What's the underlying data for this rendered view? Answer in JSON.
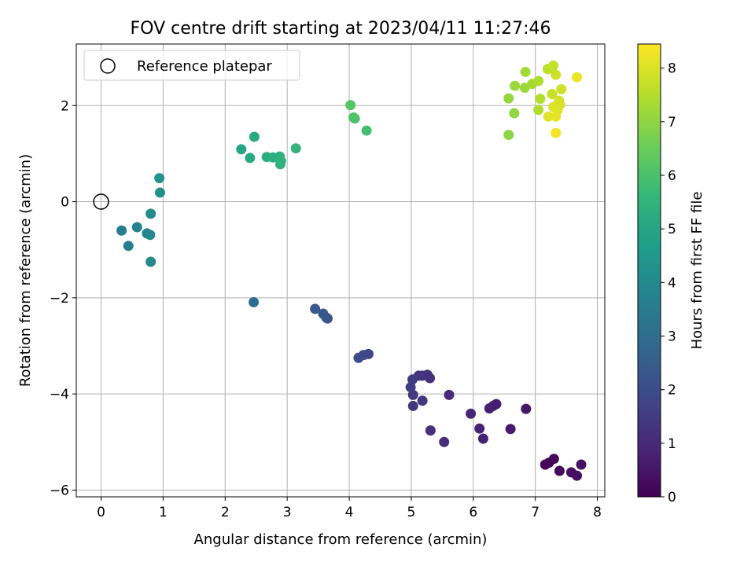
{
  "chart_data": {
    "type": "scatter",
    "title": "FOV centre drift starting at 2023/04/11 11:27:46",
    "xlabel": "Angular distance from reference (arcmin)",
    "ylabel": "Rotation from reference (arcmin)",
    "xlim": [
      -0.4,
      8.12
    ],
    "ylim": [
      -6.14,
      3.28
    ],
    "x_ticks": [
      0,
      1,
      2,
      3,
      4,
      5,
      6,
      7,
      8
    ],
    "x_tick_labels": [
      "0",
      "1",
      "2",
      "3",
      "4",
      "5",
      "6",
      "7",
      "8"
    ],
    "y_ticks": [
      -6,
      -4,
      -2,
      0,
      2
    ],
    "y_tick_labels": [
      "−6",
      "−4",
      "−2",
      "0",
      "2"
    ],
    "grid": true,
    "legend": {
      "location": "top-left",
      "entries": [
        {
          "label": "Reference platepar",
          "marker": "open-circle",
          "x": 0,
          "y": 0
        }
      ]
    },
    "colorbar": {
      "label": "Hours from first FF file",
      "colormap": "viridis",
      "range": [
        0,
        8.45
      ],
      "ticks": [
        0,
        1,
        2,
        3,
        4,
        5,
        6,
        7,
        8
      ],
      "tick_labels": [
        "0",
        "1",
        "2",
        "3",
        "4",
        "5",
        "6",
        "7",
        "8"
      ]
    },
    "colormap_stops": [
      "#440154",
      "#482878",
      "#3e4989",
      "#31688e",
      "#26828e",
      "#1f9e89",
      "#35b779",
      "#6ece58",
      "#b5de2b",
      "#fde725"
    ],
    "reference_point": {
      "x": 0,
      "y": 0
    },
    "points": [
      {
        "x": 7.16,
        "y": -5.47,
        "h": 0.1
      },
      {
        "x": 7.22,
        "y": -5.43,
        "h": 0.15
      },
      {
        "x": 7.3,
        "y": -5.35,
        "h": 0.2
      },
      {
        "x": 7.39,
        "y": -5.6,
        "h": 0.25
      },
      {
        "x": 7.58,
        "y": -5.63,
        "h": 0.3
      },
      {
        "x": 7.67,
        "y": -5.7,
        "h": 0.35
      },
      {
        "x": 7.74,
        "y": -5.47,
        "h": 0.4
      },
      {
        "x": 6.85,
        "y": -4.31,
        "h": 0.55
      },
      {
        "x": 6.6,
        "y": -4.73,
        "h": 0.6
      },
      {
        "x": 6.37,
        "y": -4.21,
        "h": 0.65
      },
      {
        "x": 6.32,
        "y": -4.25,
        "h": 0.7
      },
      {
        "x": 6.26,
        "y": -4.3,
        "h": 0.75
      },
      {
        "x": 6.16,
        "y": -4.93,
        "h": 0.8
      },
      {
        "x": 6.1,
        "y": -4.72,
        "h": 0.85
      },
      {
        "x": 5.96,
        "y": -4.41,
        "h": 0.9
      },
      {
        "x": 5.61,
        "y": -4.02,
        "h": 1.0
      },
      {
        "x": 5.53,
        "y": -5.0,
        "h": 1.05
      },
      {
        "x": 5.31,
        "y": -4.76,
        "h": 1.1
      },
      {
        "x": 5.3,
        "y": -3.67,
        "h": 1.15
      },
      {
        "x": 5.26,
        "y": -3.6,
        "h": 1.2
      },
      {
        "x": 5.18,
        "y": -3.62,
        "h": 1.25
      },
      {
        "x": 5.12,
        "y": -3.62,
        "h": 1.3
      },
      {
        "x": 5.18,
        "y": -4.14,
        "h": 1.35
      },
      {
        "x": 5.03,
        "y": -4.25,
        "h": 1.4
      },
      {
        "x": 5.03,
        "y": -4.02,
        "h": 1.45
      },
      {
        "x": 5.02,
        "y": -3.7,
        "h": 1.5
      },
      {
        "x": 4.99,
        "y": -3.86,
        "h": 1.55
      },
      {
        "x": 4.31,
        "y": -3.17,
        "h": 1.8
      },
      {
        "x": 4.23,
        "y": -3.19,
        "h": 1.85
      },
      {
        "x": 4.15,
        "y": -3.25,
        "h": 1.9
      },
      {
        "x": 3.65,
        "y": -2.43,
        "h": 2.2
      },
      {
        "x": 3.63,
        "y": -2.41,
        "h": 2.25
      },
      {
        "x": 3.58,
        "y": -2.33,
        "h": 2.3
      },
      {
        "x": 3.45,
        "y": -2.23,
        "h": 2.35
      },
      {
        "x": 2.46,
        "y": -2.09,
        "h": 3.0
      },
      {
        "x": 0.33,
        "y": -0.6,
        "h": 3.5
      },
      {
        "x": 0.44,
        "y": -0.92,
        "h": 3.6
      },
      {
        "x": 0.58,
        "y": -0.53,
        "h": 3.7
      },
      {
        "x": 0.74,
        "y": -0.66,
        "h": 3.8
      },
      {
        "x": 0.79,
        "y": -0.69,
        "h": 3.9
      },
      {
        "x": 0.8,
        "y": -1.25,
        "h": 4.0
      },
      {
        "x": 0.8,
        "y": -0.25,
        "h": 4.1
      },
      {
        "x": 0.95,
        "y": 0.19,
        "h": 4.25
      },
      {
        "x": 0.94,
        "y": 0.49,
        "h": 4.4
      },
      {
        "x": 2.26,
        "y": 1.09,
        "h": 5.0
      },
      {
        "x": 2.4,
        "y": 0.91,
        "h": 5.1
      },
      {
        "x": 2.47,
        "y": 1.35,
        "h": 5.15
      },
      {
        "x": 2.67,
        "y": 0.93,
        "h": 5.25
      },
      {
        "x": 2.77,
        "y": 0.92,
        "h": 5.3
      },
      {
        "x": 2.88,
        "y": 0.94,
        "h": 5.35
      },
      {
        "x": 2.9,
        "y": 0.85,
        "h": 5.4
      },
      {
        "x": 2.89,
        "y": 0.78,
        "h": 5.45
      },
      {
        "x": 3.14,
        "y": 1.11,
        "h": 5.5
      },
      {
        "x": 4.28,
        "y": 1.48,
        "h": 5.9
      },
      {
        "x": 4.07,
        "y": 1.75,
        "h": 6.05
      },
      {
        "x": 4.09,
        "y": 1.73,
        "h": 6.1
      },
      {
        "x": 4.02,
        "y": 2.01,
        "h": 6.2
      },
      {
        "x": 6.57,
        "y": 1.39,
        "h": 7.0
      },
      {
        "x": 6.66,
        "y": 1.84,
        "h": 7.05
      },
      {
        "x": 6.57,
        "y": 2.15,
        "h": 7.1
      },
      {
        "x": 6.67,
        "y": 2.41,
        "h": 7.15
      },
      {
        "x": 6.83,
        "y": 2.37,
        "h": 7.2
      },
      {
        "x": 6.84,
        "y": 2.7,
        "h": 7.25
      },
      {
        "x": 6.95,
        "y": 2.45,
        "h": 7.3
      },
      {
        "x": 7.05,
        "y": 2.51,
        "h": 7.4
      },
      {
        "x": 7.05,
        "y": 1.91,
        "h": 7.45
      },
      {
        "x": 7.08,
        "y": 2.14,
        "h": 7.5
      },
      {
        "x": 7.2,
        "y": 2.76,
        "h": 7.6
      },
      {
        "x": 7.29,
        "y": 2.83,
        "h": 7.7
      },
      {
        "x": 7.27,
        "y": 2.24,
        "h": 7.75
      },
      {
        "x": 7.33,
        "y": 2.64,
        "h": 7.8
      },
      {
        "x": 7.42,
        "y": 2.34,
        "h": 7.85
      },
      {
        "x": 7.38,
        "y": 2.1,
        "h": 7.9
      },
      {
        "x": 7.4,
        "y": 2.02,
        "h": 7.95
      },
      {
        "x": 7.29,
        "y": 1.97,
        "h": 8.0
      },
      {
        "x": 7.36,
        "y": 1.9,
        "h": 8.05
      },
      {
        "x": 7.21,
        "y": 1.77,
        "h": 8.1
      },
      {
        "x": 7.33,
        "y": 1.77,
        "h": 8.15
      },
      {
        "x": 7.67,
        "y": 2.59,
        "h": 8.2
      },
      {
        "x": 7.33,
        "y": 1.43,
        "h": 8.3
      }
    ]
  }
}
